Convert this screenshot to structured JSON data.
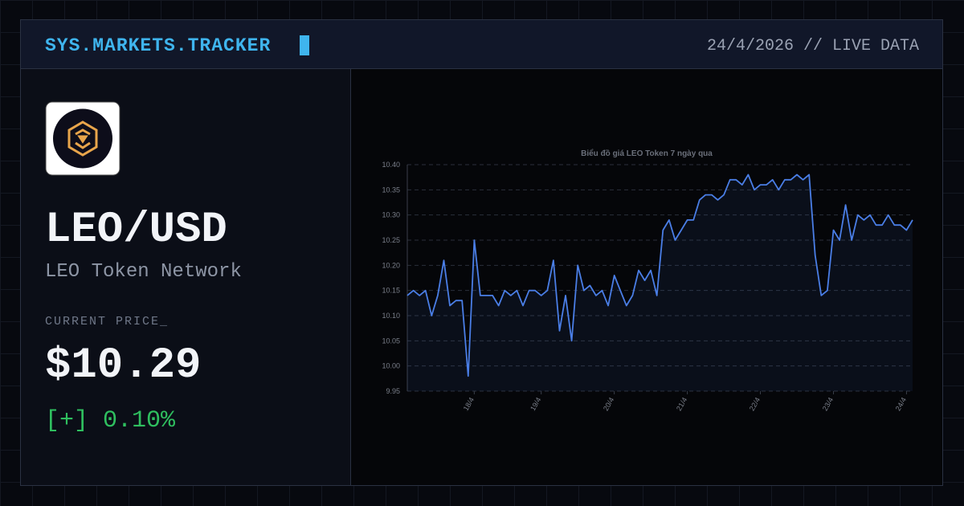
{
  "header": {
    "title": "SYS.MARKETS.TRACKER",
    "meta": "24/4/2026 // LIVE DATA"
  },
  "asset": {
    "pair": "LEO/USD",
    "name": "LEO Token Network",
    "price_label": "CURRENT PRICE_",
    "price": "$10.29",
    "change": "[+] 0.10%"
  },
  "chart_data": {
    "type": "line",
    "title": "Biểu đồ giá LEO Token 7 ngày qua",
    "color": "#4a7ee6",
    "categories": [
      null,
      null,
      null,
      null,
      null,
      null,
      null,
      null,
      null,
      null,
      null,
      "18/4",
      null,
      null,
      null,
      null,
      null,
      null,
      null,
      null,
      null,
      null,
      "19/4",
      null,
      null,
      null,
      null,
      null,
      null,
      null,
      null,
      null,
      null,
      null,
      "20/4",
      null,
      null,
      null,
      null,
      null,
      null,
      null,
      null,
      null,
      null,
      null,
      "21/4",
      null,
      null,
      null,
      null,
      null,
      null,
      null,
      null,
      null,
      null,
      null,
      "22/4",
      null,
      null,
      null,
      null,
      null,
      null,
      null,
      null,
      null,
      null,
      null,
      "23/4",
      null,
      null,
      null,
      null,
      null,
      null,
      null,
      null,
      null,
      null,
      null,
      "24/4",
      null
    ],
    "values": [
      10.14,
      10.15,
      10.14,
      10.15,
      10.1,
      10.14,
      10.21,
      10.12,
      10.13,
      10.13,
      9.98,
      10.25,
      10.14,
      10.14,
      10.14,
      10.12,
      10.15,
      10.14,
      10.15,
      10.12,
      10.15,
      10.15,
      10.14,
      10.15,
      10.21,
      10.07,
      10.14,
      10.05,
      10.2,
      10.15,
      10.16,
      10.14,
      10.15,
      10.12,
      10.18,
      10.15,
      10.12,
      10.14,
      10.19,
      10.17,
      10.19,
      10.14,
      10.27,
      10.29,
      10.25,
      10.27,
      10.29,
      10.29,
      10.33,
      10.34,
      10.34,
      10.33,
      10.34,
      10.37,
      10.37,
      10.36,
      10.38,
      10.35,
      10.36,
      10.36,
      10.37,
      10.35,
      10.37,
      10.37,
      10.38,
      10.37,
      10.38,
      10.22,
      10.14,
      10.15,
      10.27,
      10.25,
      10.32,
      10.25,
      10.3,
      10.29,
      10.3,
      10.28,
      10.28,
      10.3,
      10.28,
      10.28,
      10.27,
      10.29
    ],
    "ylim": [
      9.95,
      10.4
    ],
    "yticks": [
      9.95,
      {
        "value": 10,
        "label": "10.00"
      },
      10.05,
      {
        "value": 10.1,
        "label": "10.10"
      },
      10.15,
      {
        "value": 10.2,
        "label": "10.20"
      },
      10.25,
      {
        "value": 10.3,
        "label": "10.30"
      },
      10.35,
      {
        "value": 10.4,
        "label": "10.40"
      }
    ],
    "grid": true
  }
}
